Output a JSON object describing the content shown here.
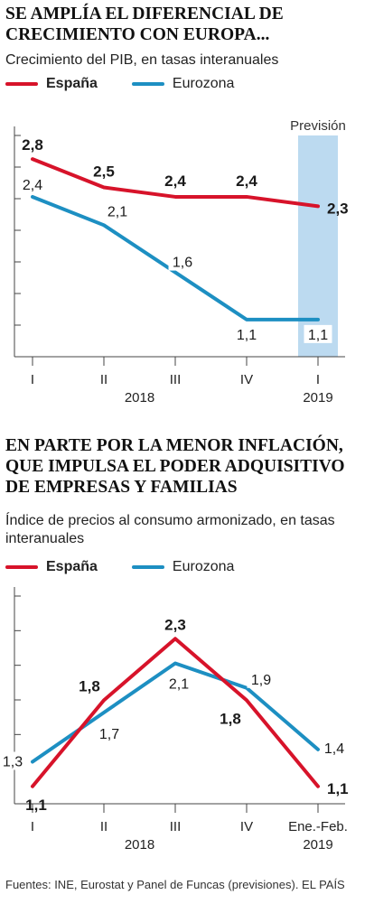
{
  "chart1": {
    "title": "SE AMPLÍA EL DIFERENCIAL DE CRECIMIENTO CON EUROPA...",
    "subtitle": "Crecimiento del PIB, en tasas interanuales",
    "legend": [
      "España",
      "Eurozona"
    ],
    "forecast_label": "Previsión"
  },
  "chart2": {
    "title": "EN PARTE POR LA MENOR INFLACIÓN, QUE IMPULSA EL PODER ADQUISITIVO DE EMPRESAS Y FAMILIAS",
    "subtitle": "Índice de precios al consumo armonizado, en tasas interanuales",
    "legend": [
      "España",
      "Eurozona"
    ]
  },
  "colors": {
    "espana": "#d7132a",
    "eurozona": "#1d8fc2",
    "forecast": "#bcdaf0"
  },
  "footer": "Fuentes: INE, Eurostat y Panel de Funcas (previsiones).  EL PAÍS",
  "chart_data": [
    {
      "type": "line",
      "title": "SE AMPLÍA EL DIFERENCIAL DE CRECIMIENTO CON EUROPA...",
      "subtitle": "Crecimiento del PIB, en tasas interanuales",
      "categories": [
        "I",
        "II",
        "III",
        "IV",
        "I"
      ],
      "year_labels": [
        {
          "text": "2018",
          "index": 1.5
        },
        {
          "text": "2019",
          "index": 4
        }
      ],
      "series": [
        {
          "name": "España",
          "values": [
            2.8,
            2.5,
            2.4,
            2.4,
            2.3
          ],
          "labels": [
            "2,8",
            "2,5",
            "2,4",
            "2,4",
            "2,3"
          ]
        },
        {
          "name": "Eurozona",
          "values": [
            2.4,
            2.1,
            1.6,
            1.1,
            1.1
          ],
          "labels": [
            "2,4",
            "2,1",
            "1,6",
            "1,1",
            "1,1"
          ]
        }
      ],
      "forecast_index": 4,
      "ylim": [
        0.85,
        3.05
      ],
      "grid": false
    },
    {
      "type": "line",
      "title": "EN PARTE POR LA MENOR INFLACIÓN, QUE IMPULSA EL PODER ADQUISITIVO DE EMPRESAS Y FAMILIAS",
      "subtitle": "Índice de precios al consumo armonizado, en tasas interanuales",
      "categories": [
        "I",
        "II",
        "III",
        "IV",
        "Ene.-Feb."
      ],
      "year_labels": [
        {
          "text": "2018",
          "index": 1.5
        },
        {
          "text": "2019",
          "index": 4
        }
      ],
      "series": [
        {
          "name": "España",
          "values": [
            1.1,
            1.8,
            2.3,
            1.8,
            1.1
          ],
          "labels": [
            "1,1",
            "1,8",
            "2,3",
            "1,8",
            "1,1"
          ]
        },
        {
          "name": "Eurozona",
          "values": [
            1.3,
            1.7,
            2.1,
            1.9,
            1.4
          ],
          "labels": [
            "1,3",
            "1,7",
            "2,1",
            "1,9",
            "1,4"
          ]
        }
      ],
      "ylim": [
        0.9,
        2.5
      ],
      "grid": false
    }
  ]
}
